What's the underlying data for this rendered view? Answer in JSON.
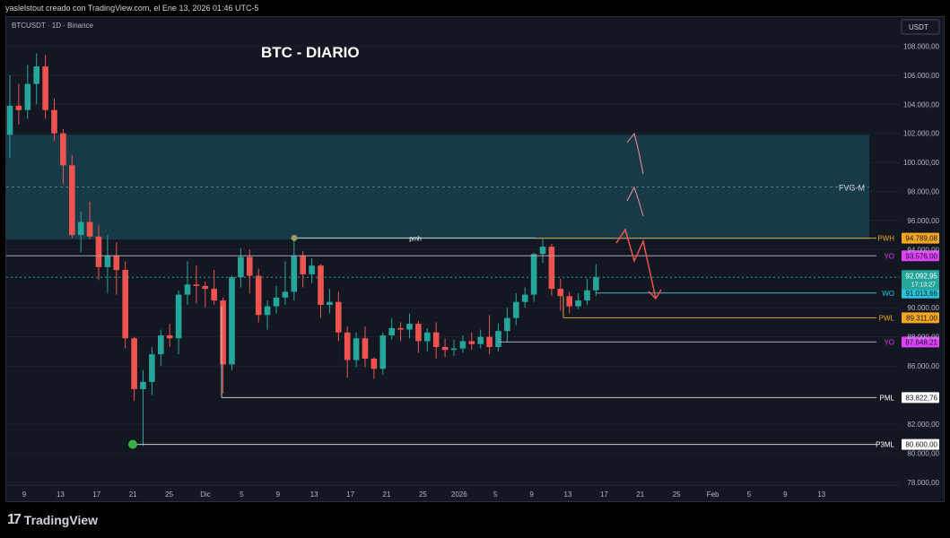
{
  "header_text": "yaslelstout creado con TradingView.com, el Ene 13, 2026 01:46 UTC-5",
  "brand": {
    "name": "TradingView",
    "icon": "tradingview-logo-icon"
  },
  "colors": {
    "bg": "#131722",
    "up": "#26a69a",
    "down": "#ef5350",
    "fvg": "#1a3e4c",
    "grid": "#1e2230"
  },
  "chart_data": {
    "type": "candlestick",
    "title": "BTC - DIARIO",
    "symbol_label": "BTCUSDT · 1D · Binance",
    "currency_label": "USDT",
    "ylim": [
      77800,
      110000
    ],
    "y_ticks": [
      "108.000,00",
      "106.000,00",
      "104.000,00",
      "102.000,00",
      "100.000,00",
      "98.000,00",
      "96.000,00",
      "94.000,00",
      "90.000,00",
      "88.000,00",
      "86.000,00",
      "82.000,00",
      "80.000,00",
      "78.000,00"
    ],
    "x_ticks": [
      "9",
      "13",
      "17",
      "21",
      "25",
      "Dic",
      "5",
      "9",
      "13",
      "17",
      "21",
      "25",
      "2026",
      "5",
      "9",
      "13",
      "17",
      "21",
      "25",
      "Feb",
      "5",
      "9",
      "13"
    ],
    "candles": [
      [
        101900,
        106000,
        100300,
        103900
      ],
      [
        103900,
        105400,
        102600,
        103600
      ],
      [
        103600,
        106700,
        103000,
        105400
      ],
      [
        105400,
        107500,
        104000,
        106600
      ],
      [
        106600,
        107400,
        103000,
        103600
      ],
      [
        103600,
        104400,
        101500,
        102000
      ],
      [
        102000,
        102300,
        98500,
        99800
      ],
      [
        99800,
        100500,
        94800,
        95000
      ],
      [
        95000,
        96600,
        93800,
        95900
      ],
      [
        95900,
        97300,
        94700,
        94900
      ],
      [
        94900,
        95700,
        91900,
        92800
      ],
      [
        92800,
        95000,
        91000,
        93600
      ],
      [
        93600,
        94500,
        90900,
        92600
      ],
      [
        92600,
        93200,
        87200,
        87900
      ],
      [
        87900,
        88000,
        83600,
        84400
      ],
      [
        84400,
        85700,
        80500,
        84900
      ],
      [
        84900,
        87300,
        84000,
        86800
      ],
      [
        86800,
        88500,
        86000,
        88100
      ],
      [
        88100,
        88900,
        87300,
        87900
      ],
      [
        87900,
        91200,
        86800,
        90900
      ],
      [
        90900,
        93200,
        90200,
        91600
      ],
      [
        91600,
        92900,
        90300,
        91500
      ],
      [
        91500,
        91800,
        90000,
        91300
      ],
      [
        91300,
        92600,
        90200,
        90500
      ],
      [
        90500,
        90700,
        84100,
        86100
      ],
      [
        86100,
        92200,
        85700,
        92100
      ],
      [
        92100,
        94100,
        91400,
        93500
      ],
      [
        93500,
        94000,
        91000,
        92200
      ],
      [
        92200,
        92700,
        89000,
        89500
      ],
      [
        89500,
        90500,
        88500,
        90100
      ],
      [
        90100,
        91500,
        89600,
        90700
      ],
      [
        90700,
        93200,
        90200,
        91100
      ],
      [
        91100,
        94700,
        90500,
        93600
      ],
      [
        93600,
        93900,
        91400,
        92300
      ],
      [
        92300,
        93400,
        91700,
        92900
      ],
      [
        92900,
        93000,
        89300,
        90200
      ],
      [
        90200,
        91300,
        89600,
        90400
      ],
      [
        90400,
        91100,
        87700,
        88300
      ],
      [
        88300,
        88700,
        85200,
        86400
      ],
      [
        86400,
        88300,
        85900,
        87900
      ],
      [
        87900,
        88700,
        85900,
        86500
      ],
      [
        86500,
        86600,
        85100,
        85800
      ],
      [
        85800,
        88300,
        85400,
        88100
      ],
      [
        88100,
        89300,
        87800,
        88600
      ],
      [
        88600,
        89000,
        87700,
        88500
      ],
      [
        88500,
        89600,
        87900,
        88900
      ],
      [
        88900,
        89100,
        86900,
        87700
      ],
      [
        87700,
        88600,
        87000,
        88300
      ],
      [
        88300,
        89000,
        86500,
        87300
      ],
      [
        87300,
        87900,
        86600,
        87100
      ],
      [
        87100,
        87800,
        86700,
        87200
      ],
      [
        87200,
        88100,
        86900,
        87700
      ],
      [
        87700,
        88300,
        87100,
        87500
      ],
      [
        87500,
        88500,
        87200,
        88000
      ],
      [
        88000,
        89500,
        86800,
        87300
      ],
      [
        87300,
        88900,
        87000,
        88400
      ],
      [
        88400,
        90000,
        87600,
        89300
      ],
      [
        89300,
        91000,
        88800,
        90400
      ],
      [
        90400,
        91400,
        90000,
        90900
      ],
      [
        90900,
        93800,
        90400,
        93700
      ],
      [
        93700,
        94800,
        93100,
        94200
      ],
      [
        94200,
        94400,
        90800,
        91300
      ],
      [
        91300,
        92000,
        89800,
        90800
      ],
      [
        90800,
        91100,
        89600,
        90100
      ],
      [
        90100,
        91000,
        89900,
        90500
      ],
      [
        90500,
        92000,
        90200,
        91200
      ],
      [
        91200,
        93000,
        90800,
        92100
      ]
    ],
    "fvg_zone": {
      "label": "FVG-M",
      "top": 101900,
      "bottom": 94700,
      "mid": 98300
    },
    "levels": [
      {
        "label": "PWH",
        "value": 94789.08,
        "price_text": "94.789,08",
        "color": "#f5a623"
      },
      {
        "label": "YO",
        "value": 93576.0,
        "price_text": "93.576,00",
        "color": "#e040fb"
      },
      {
        "label": "WO",
        "value": 91013.66,
        "price_text": "91.013,66",
        "color": "#26c6da"
      },
      {
        "label": "PWL",
        "value": 89311.0,
        "price_text": "89.311,00",
        "color": "#f5a623"
      },
      {
        "label": "YO",
        "value": 87648.21,
        "price_text": "87.648,21",
        "color": "#e040fb"
      },
      {
        "label": "PML",
        "value": 83822.76,
        "price_text": "83.822,76",
        "color": "#ffffff"
      },
      {
        "label": "P3ML",
        "value": 80600.0,
        "price_text": "80.600,00",
        "color": "#ffffff"
      }
    ],
    "last_price": {
      "price_text": "92.092,95",
      "countdown": "17:13:27",
      "value": 92092.95
    },
    "annotations": [
      {
        "label": "pmh",
        "value": 94800
      }
    ]
  }
}
